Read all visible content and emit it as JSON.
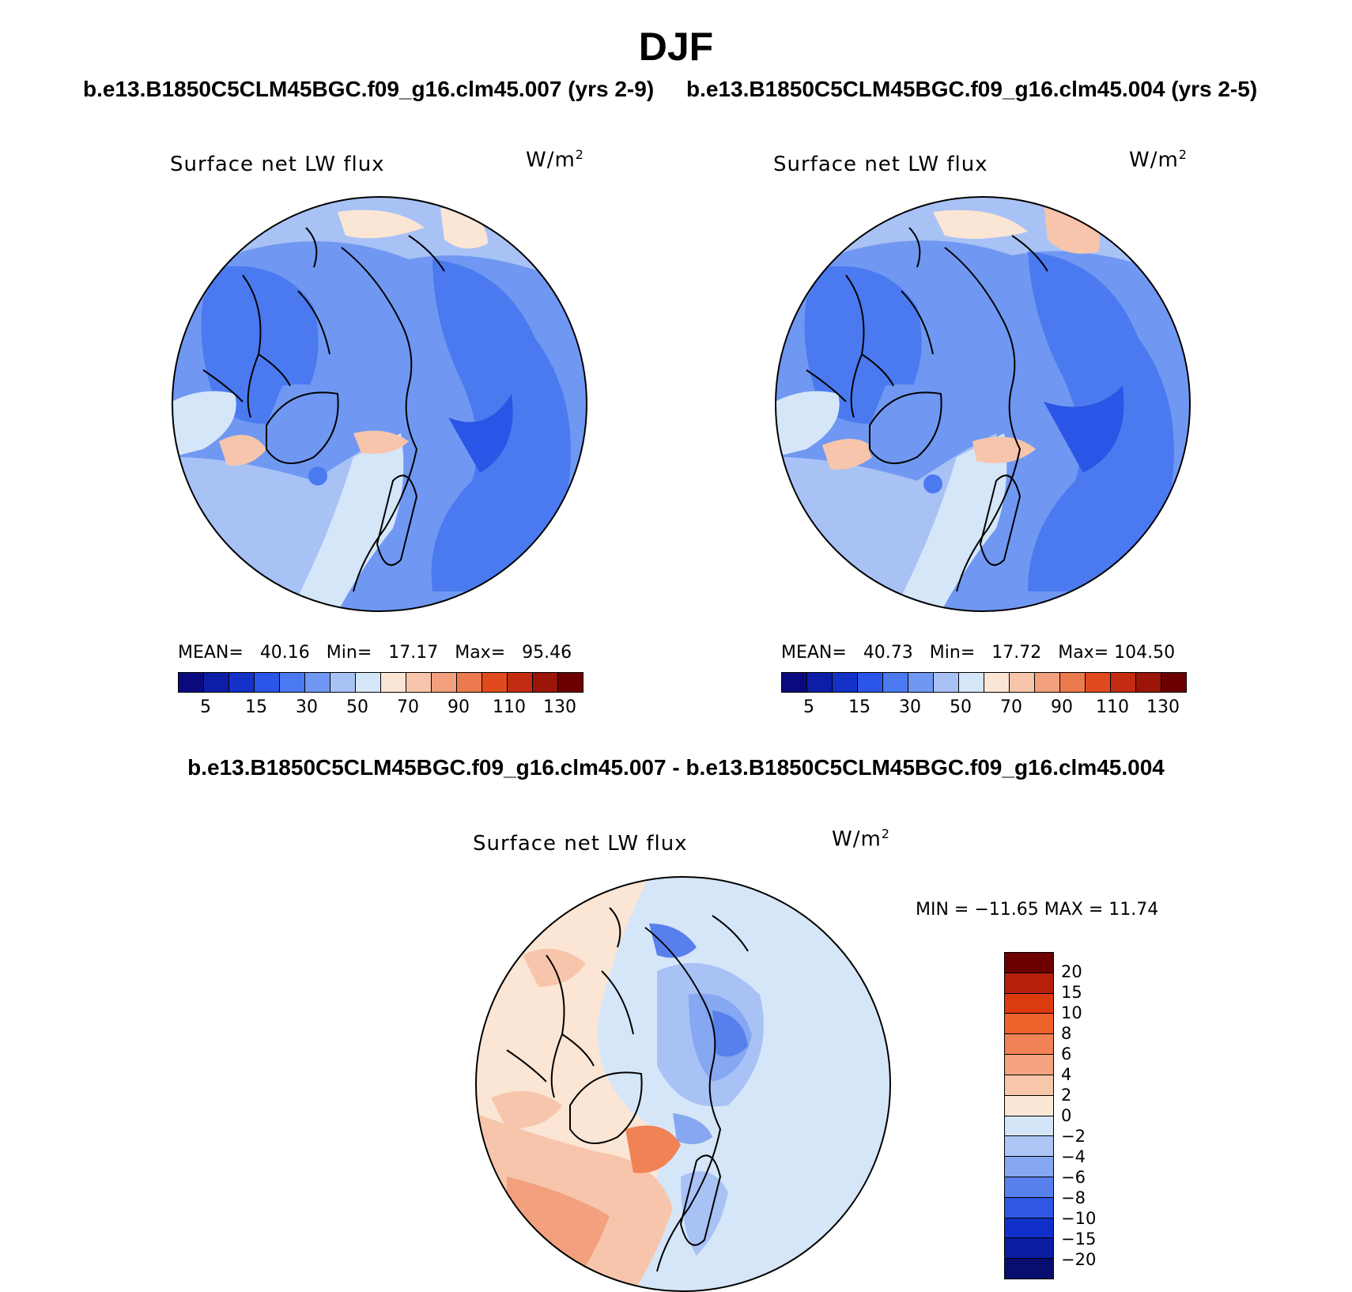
{
  "title": "DJF",
  "case_titles": {
    "left": "b.e13.B1850C5CLM45BGC.f09_g16.clm45.007 (yrs 2-9)",
    "right": "b.e13.B1850C5CLM45BGC.f09_g16.clm45.004 (yrs 2-5)"
  },
  "diff_title": "b.e13.B1850C5CLM45BGC.f09_g16.clm45.007 - b.e13.B1850C5CLM45BGC.f09_g16.clm45.004",
  "variable": "Surface net LW flux",
  "units": "W/m",
  "units_sup": "2",
  "panels": {
    "left": {
      "mean_label": "MEAN=",
      "mean": "40.16",
      "min_label": "Min=",
      "min": "17.17",
      "max_label": "Max=",
      "max": "95.46"
    },
    "right": {
      "mean_label": "MEAN=",
      "mean": "40.73",
      "min_label": "Min=",
      "min": "17.72",
      "max_label": "Max=",
      "max": "104.50"
    },
    "diff": {
      "minmax": "MIN = −11.65 MAX =  11.74"
    }
  },
  "colorbar_main": {
    "colors": [
      "#0a0a7e",
      "#0d1ea6",
      "#1432c8",
      "#2b55e6",
      "#4b7af0",
      "#7098f2",
      "#a8c2f6",
      "#d6e6f9",
      "#fbe5d4",
      "#f7c5ab",
      "#f2a07e",
      "#eb7a4f",
      "#e04b1e",
      "#c22c10",
      "#9b1608",
      "#6c0000"
    ],
    "tick_labels": [
      "5",
      "15",
      "30",
      "50",
      "70",
      "90",
      "110",
      "130"
    ]
  },
  "colorbar_diff": {
    "colors": [
      "#6c0000",
      "#b51f0c",
      "#dc3b10",
      "#f0622b",
      "#f08255",
      "#f5a47f",
      "#f8c7aa",
      "#fbe7d6",
      "#d5e5f8",
      "#aec6f5",
      "#86a7f1",
      "#5880ec",
      "#2e57e2",
      "#0f2fc8",
      "#0a1ca0",
      "#080e6e"
    ],
    "tick_labels": [
      "20",
      "15",
      "10",
      "8",
      "6",
      "4",
      "2",
      "0",
      "−2",
      "−4",
      "−6",
      "−8",
      "−10",
      "−15",
      "−20"
    ]
  },
  "map_colors": {
    "ocean_deep": "#2b55e6",
    "blue_mid": "#4b7af0",
    "blue_light": "#7098f2",
    "blue_pale": "#a8c2f6",
    "blue_paler": "#d6e6f9",
    "warm_pale": "#fbe5d4",
    "warm": "#f7c5ab",
    "warm_strong": "#f2a07e",
    "red": "#e04b1e"
  }
}
